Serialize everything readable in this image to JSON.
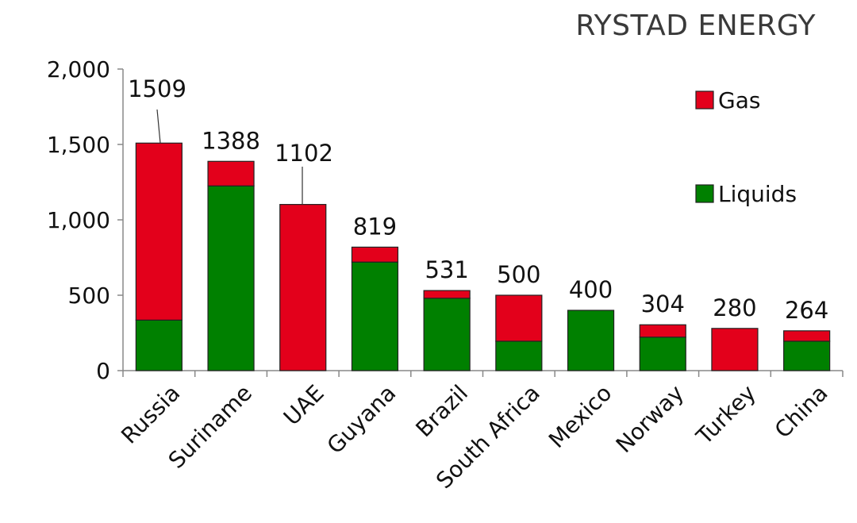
{
  "brand": "RYSTAD ENERGY",
  "chart_data": {
    "type": "bar",
    "stacked": true,
    "title": "",
    "xlabel": "",
    "ylabel": "",
    "ylim": [
      0,
      2000
    ],
    "yticks": [
      0,
      500,
      1000,
      1500,
      2000
    ],
    "ytick_labels": [
      "0",
      "500",
      "1,000",
      "1,500",
      "2,000"
    ],
    "grid": false,
    "legend_position": "top-right",
    "categories": [
      "Russia",
      "Suriname",
      "UAE",
      "Guyana",
      "Brazil",
      "South Africa",
      "Mexico",
      "Norway",
      "Turkey",
      "China"
    ],
    "series": [
      {
        "name": "Liquids",
        "color": "#008000",
        "values": [
          335,
          1225,
          0,
          720,
          480,
          195,
          400,
          222,
          0,
          195
        ]
      },
      {
        "name": "Gas",
        "color": "#e3001b",
        "values": [
          1174,
          163,
          1102,
          99,
          51,
          305,
          0,
          82,
          280,
          69
        ]
      }
    ],
    "legend_order": [
      "Gas",
      "Liquids"
    ],
    "totals": [
      1509,
      1388,
      1102,
      819,
      531,
      500,
      400,
      304,
      280,
      264
    ],
    "total_labels": [
      "1509",
      "1388",
      "1102",
      "819",
      "531",
      "500",
      "400",
      "304",
      "280",
      "264"
    ]
  }
}
